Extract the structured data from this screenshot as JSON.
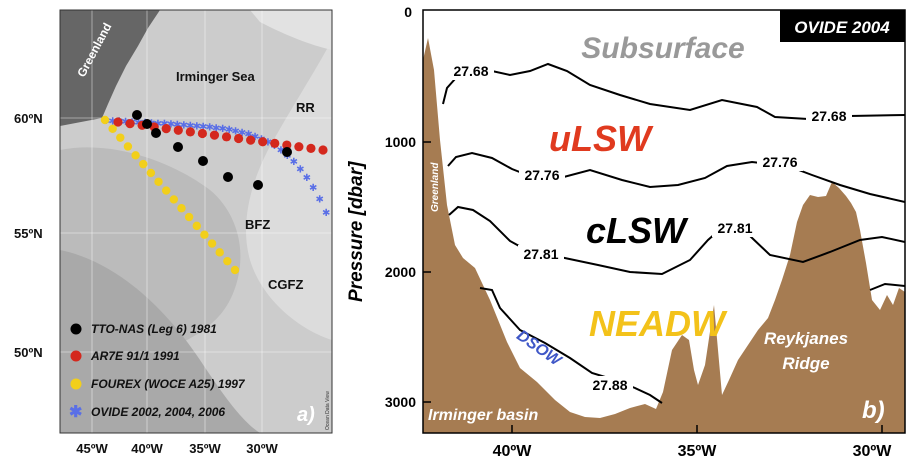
{
  "colors": {
    "land": "#666666",
    "sea_light": "#cccccc",
    "sea_mid": "#bbbbbb",
    "sea_deep": "#a9a9a9",
    "bathy": "#a67c52",
    "tto": "#000000",
    "ar7e": "#d4281d",
    "fourex": "#f2cf1a",
    "ovide": "#5a6fe6",
    "subsurface": "#999999",
    "ulsw": "#e03a1f",
    "clsw": "#000000",
    "neadw": "#f3c21a",
    "dsow": "#3f57c7"
  },
  "map": {
    "panel_label": "a)",
    "place_labels": {
      "greenland": "Greenland",
      "irminger_sea": "Irminger Sea",
      "rr": "RR",
      "bfz": "BFZ",
      "cgfz": "CGFZ"
    },
    "lat_labels": [
      "60ºN",
      "55ºN",
      "50ºN"
    ],
    "lon_labels": [
      "45ºW",
      "40ºW",
      "35ºW",
      "30ºW"
    ],
    "legend": [
      {
        "marker": "circle",
        "color_key": "tto",
        "label": "TTO-NAS (Leg 6) 1981"
      },
      {
        "marker": "circle",
        "color_key": "ar7e",
        "label": "AR7E 91/1 1991"
      },
      {
        "marker": "circle",
        "color_key": "fourex",
        "label": "FOUREX (WOCE A25) 1997"
      },
      {
        "marker": "star",
        "color_key": "ovide",
        "label": "OVIDE 2002, 2004, 2006"
      }
    ],
    "credit": "Ocean Data View"
  },
  "section": {
    "panel_label": "b)",
    "badge": "OVIDE 2004",
    "ylabel": "Pressure [dbar]",
    "y_ticks": [
      "0",
      "1000",
      "2000",
      "3000"
    ],
    "x_ticks": [
      "40ºW",
      "35ºW",
      "30ºW"
    ],
    "water_masses": {
      "subsurface": "Subsurface",
      "ulsw": "uLSW",
      "clsw": "cLSW",
      "neadw": "NEADW",
      "dsow": "DSOW"
    },
    "isopycnal_labels": {
      "a1": "27.68",
      "a2": "27.68",
      "b1": "27.76",
      "b2": "27.76",
      "c1": "27.81",
      "c2": "27.81",
      "d1": "27.88"
    },
    "relief_labels": {
      "greenland": "Greenland",
      "irminger_basin": "Irminger basin",
      "reykjanes_1": "Reykjanes",
      "reykjanes_2": "Ridge"
    }
  }
}
